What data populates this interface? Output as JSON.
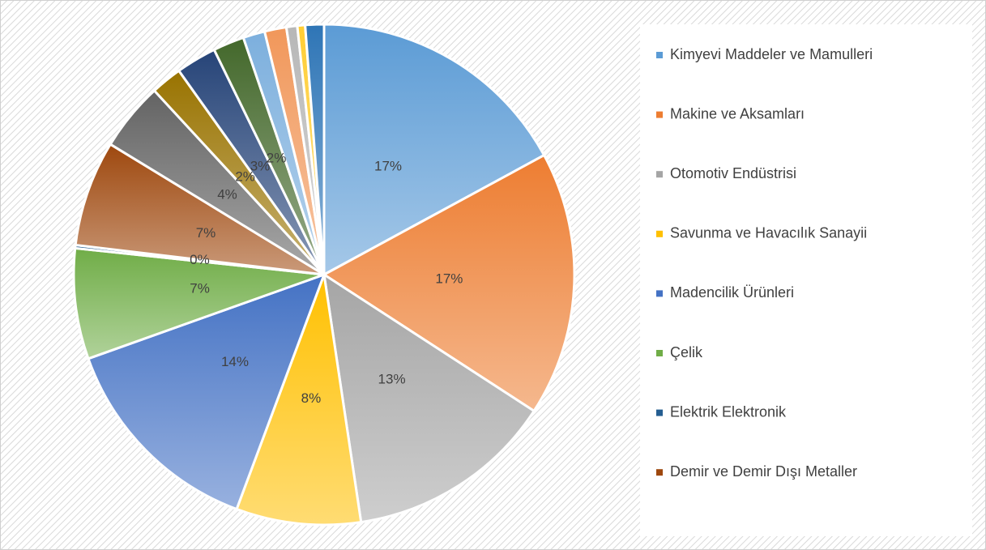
{
  "chart_data": {
    "type": "pie",
    "categories": [
      "Kimyevi Maddeler ve Mamulleri",
      "Makine ve Aksamları",
      "Otomotiv Endüstrisi",
      "Savunma ve Havacılık Sanayii",
      "Madencilik Ürünleri",
      "Çelik",
      "Elektrik Elektronik",
      "Demir ve Demir Dışı Metaller",
      null,
      null,
      null,
      null,
      null,
      null,
      null,
      null,
      null
    ],
    "values": [
      17,
      17,
      13.4,
      8,
      13.8,
      7.1,
      0.2,
      6.8,
      4.4,
      2,
      2.6,
      2,
      1.4,
      1.4,
      0.7,
      0.5,
      1.2
    ],
    "value_labels": [
      "17%",
      "17%",
      "13%",
      "8%",
      "14%",
      "7%",
      "0%",
      "7%",
      "4%",
      "2%",
      "3%",
      "2%",
      null,
      null,
      null,
      null,
      null
    ],
    "colors": [
      "#5b9bd5",
      "#ed7d31",
      "#a5a5a5",
      "#ffc000",
      "#4472c4",
      "#70ad47",
      "#255e91",
      "#9e480e",
      "#636363",
      "#997300",
      "#264478",
      "#43682b",
      "#7cafdd",
      "#f1975a",
      "#b7b7b7",
      "#ffcd33",
      "#2e75b6"
    ],
    "legend": "right"
  }
}
